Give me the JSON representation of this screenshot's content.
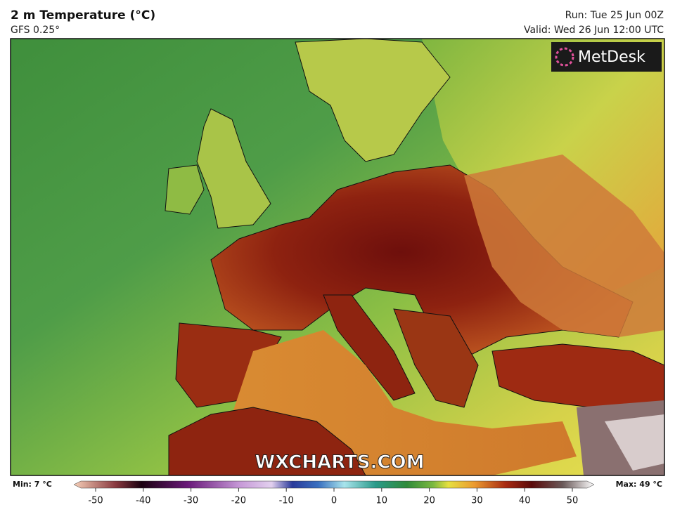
{
  "header": {
    "title": "2 m Temperature (°C)",
    "model": "GFS 0.25°",
    "run": "Run: Tue 25 Jun 00Z",
    "valid": "Valid: Wed 26 Jun 12:00 UTC"
  },
  "logo": "MetDesk",
  "watermark": "WXCHARTS.COM",
  "colorbar": {
    "min_label": "Min: 7 °C",
    "max_label": "Max: 49 °C",
    "ticks": [
      -50,
      -40,
      -30,
      -20,
      -10,
      0,
      10,
      20,
      30,
      40,
      50
    ]
  }
}
